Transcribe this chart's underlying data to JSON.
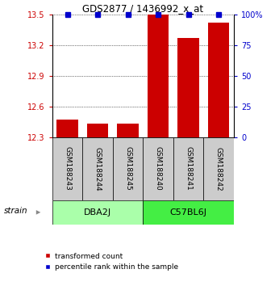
{
  "title": "GDS2877 / 1436992_x_at",
  "samples": [
    "GSM188243",
    "GSM188244",
    "GSM188245",
    "GSM188240",
    "GSM188241",
    "GSM188242"
  ],
  "red_values": [
    12.47,
    12.43,
    12.43,
    13.5,
    13.27,
    13.42
  ],
  "blue_values": [
    100,
    100,
    100,
    100,
    100,
    100
  ],
  "y_min": 12.3,
  "y_max": 13.5,
  "y_ticks": [
    12.3,
    12.6,
    12.9,
    13.2,
    13.5
  ],
  "y_right_ticks": [
    0,
    25,
    50,
    75,
    100
  ],
  "y_right_labels": [
    "0",
    "25",
    "50",
    "75",
    "100%"
  ],
  "bar_color": "#CC0000",
  "dot_color": "#0000CC",
  "ylabel_left_color": "#CC0000",
  "ylabel_right_color": "#0000CC",
  "group_configs": [
    {
      "label": "DBA2J",
      "start": 0,
      "end": 2,
      "color": "#AAFFAA"
    },
    {
      "label": "C57BL6J",
      "start": 3,
      "end": 5,
      "color": "#44EE44"
    }
  ],
  "strain_label": "strain",
  "bar_width": 0.7,
  "figsize": [
    3.41,
    3.54
  ],
  "dpi": 100
}
